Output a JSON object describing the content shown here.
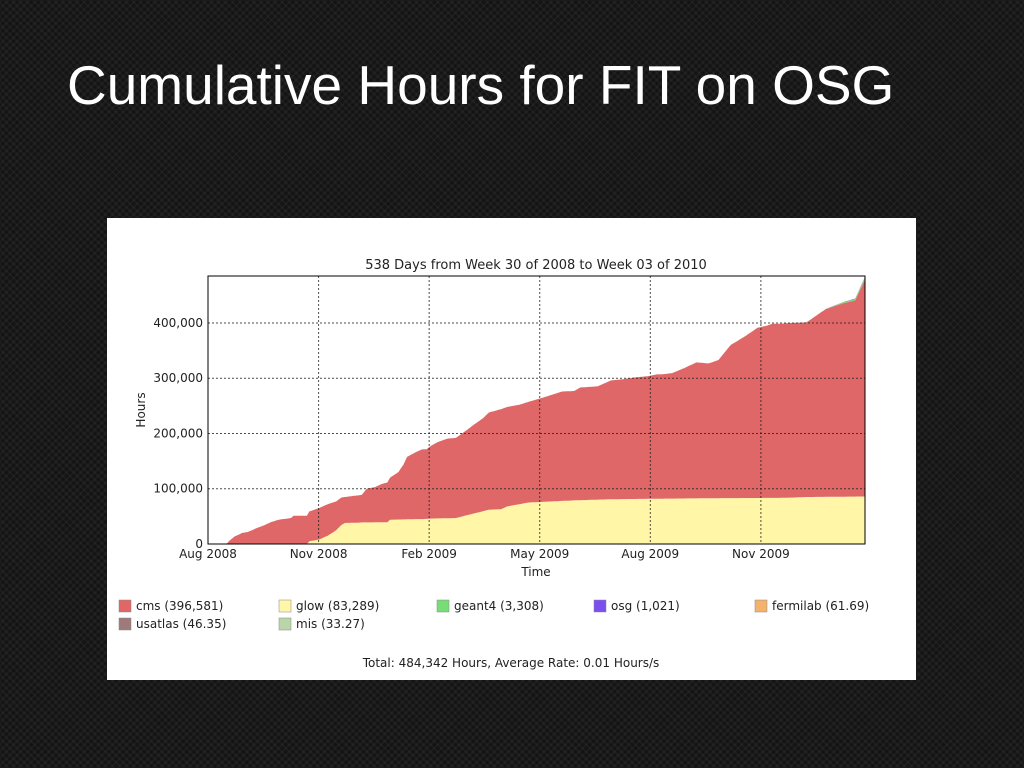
{
  "slide": {
    "title": "Cumulative Hours for FIT on OSG"
  },
  "chart_data": {
    "type": "area",
    "title": "538 Days from Week 30 of 2008 to Week 03 of 2010",
    "xlabel": "Time",
    "ylabel": "Hours",
    "x_tick_labels": [
      "Aug 2008",
      "Nov 2008",
      "Feb 2009",
      "May 2009",
      "Aug 2009",
      "Nov 2009"
    ],
    "y_tick_labels": [
      "0",
      "100,000",
      "200,000",
      "300,000",
      "400,000"
    ],
    "y_ticks": [
      0,
      100000,
      200000,
      300000,
      400000
    ],
    "ylim": [
      0,
      485000
    ],
    "xlim": [
      0,
      538
    ],
    "x_unit": "days since start of Week 30 of 2008",
    "stacked": true,
    "grid": true,
    "legend_position": "bottom",
    "series": [
      {
        "name": "glow",
        "total_label": "(83,289)",
        "color": "#fff6a8",
        "x": [
          0,
          81,
          83,
          91,
          98,
          105,
          109,
          112,
          121,
          126,
          130,
          147,
          149,
          160,
          170,
          175,
          179,
          182,
          203,
          210,
          230,
          240,
          245,
          255,
          262,
          300,
          330,
          370,
          420,
          468,
          478,
          490,
          538
        ],
        "values": [
          0,
          0,
          5000,
          8000,
          15000,
          25000,
          34000,
          38000,
          38500,
          39000,
          39000,
          39500,
          44000,
          44500,
          45000,
          45000,
          45500,
          46000,
          47000,
          51000,
          62000,
          63000,
          68000,
          72000,
          75000,
          79000,
          81000,
          82000,
          83000,
          83500,
          84000,
          85000,
          86000
        ]
      },
      {
        "name": "cms",
        "total_label": "(396,581)",
        "color": "#e06767",
        "x": [
          0,
          15,
          16,
          17,
          22,
          28,
          33,
          39,
          46,
          52,
          58,
          68,
          70,
          81,
          83,
          91,
          98,
          105,
          109,
          112,
          121,
          126,
          130,
          137,
          142,
          147,
          149,
          156,
          160,
          163,
          170,
          175,
          179,
          182,
          188,
          196,
          203,
          210,
          218,
          225,
          230,
          240,
          245,
          255,
          262,
          275,
          290,
          300,
          305,
          319,
          330,
          340,
          350,
          360,
          368,
          372,
          380,
          390,
          400,
          405,
          410,
          418,
          428,
          440,
          450,
          458,
          462,
          468,
          478,
          490,
          506,
          520,
          530,
          538
        ],
        "values": [
          0,
          0,
          2000,
          5000,
          14000,
          20000,
          22000,
          28000,
          34000,
          40000,
          44000,
          47000,
          51000,
          51000,
          54000,
          57000,
          57000,
          52000,
          50000,
          47000,
          49000,
          50000,
          61000,
          64000,
          69000,
          72000,
          76000,
          86000,
          99000,
          113000,
          121000,
          126000,
          126000,
          131000,
          138000,
          144000,
          145000,
          152000,
          161000,
          168000,
          176000,
          181000,
          180000,
          180000,
          182000,
          189000,
          198000,
          198000,
          204000,
          205000,
          215000,
          217000,
          220000,
          222000,
          225000,
          225000,
          227000,
          236000,
          246000,
          245000,
          244000,
          250000,
          277000,
          293000,
          308000,
          312000,
          315000,
          315000,
          316000,
          316000,
          340000,
          350000,
          355000,
          393000
        ]
      },
      {
        "name": "geant4",
        "total_label": "(3,308)",
        "color": "#77dd77",
        "x": [
          0,
          504,
          538
        ],
        "values": [
          0,
          0,
          3300
        ]
      },
      {
        "name": "osg",
        "total_label": "(1,021)",
        "color": "#7a4ff0",
        "x": [
          0,
          504,
          538
        ],
        "values": [
          0,
          0,
          1021
        ]
      },
      {
        "name": "fermilab",
        "total_label": "(61.69)",
        "color": "#f5b26b",
        "x": [
          0,
          538
        ],
        "values": [
          0,
          62
        ]
      },
      {
        "name": "usatlas",
        "total_label": "(46.35)",
        "color": "#9e7a7a",
        "x": [
          0,
          538
        ],
        "values": [
          0,
          46
        ]
      },
      {
        "name": "mis",
        "total_label": "(33.27)",
        "color": "#b8d6a8",
        "x": [
          0,
          538
        ],
        "values": [
          0,
          33
        ]
      }
    ],
    "legend": [
      {
        "name": "cms",
        "total": "(396,581)",
        "color": "#e06767"
      },
      {
        "name": "glow",
        "total": "(83,289)",
        "color": "#fff6a8"
      },
      {
        "name": "geant4",
        "total": "(3,308)",
        "color": "#77dd77"
      },
      {
        "name": "osg",
        "total": "(1,021)",
        "color": "#7a4ff0"
      },
      {
        "name": "fermilab",
        "total": "(61.69)",
        "color": "#f5b26b"
      },
      {
        "name": "usatlas",
        "total": "(46.35)",
        "color": "#9e7a7a"
      },
      {
        "name": "mis",
        "total": "(33.27)",
        "color": "#b8d6a8"
      }
    ],
    "footer": "Total: 484,342 Hours, Average Rate: 0.01 Hours/s"
  }
}
